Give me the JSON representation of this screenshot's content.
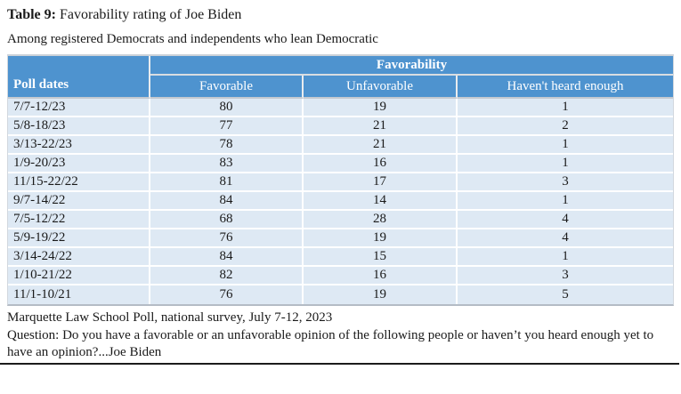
{
  "title": {
    "prefix": "Table 9:",
    "text": "Favorability rating of Joe Biden"
  },
  "subtitle": "Among registered Democrats and independents who lean Democratic",
  "table": {
    "group_header": "Favorability",
    "columns": [
      "Poll dates",
      "Favorable",
      "Unfavorable",
      "Haven't heard enough"
    ],
    "rows": [
      {
        "date": "7/7-12/23",
        "favorable": "80",
        "unfavorable": "19",
        "havent_heard": "1"
      },
      {
        "date": "5/8-18/23",
        "favorable": "77",
        "unfavorable": "21",
        "havent_heard": "2"
      },
      {
        "date": "3/13-22/23",
        "favorable": "78",
        "unfavorable": "21",
        "havent_heard": "1"
      },
      {
        "date": "1/9-20/23",
        "favorable": "83",
        "unfavorable": "16",
        "havent_heard": "1"
      },
      {
        "date": "11/15-22/22",
        "favorable": "81",
        "unfavorable": "17",
        "havent_heard": "3"
      },
      {
        "date": "9/7-14/22",
        "favorable": "84",
        "unfavorable": "14",
        "havent_heard": "1"
      },
      {
        "date": "7/5-12/22",
        "favorable": "68",
        "unfavorable": "28",
        "havent_heard": "4"
      },
      {
        "date": "5/9-19/22",
        "favorable": "76",
        "unfavorable": "19",
        "havent_heard": "4"
      },
      {
        "date": "3/14-24/22",
        "favorable": "84",
        "unfavorable": "15",
        "havent_heard": "1"
      },
      {
        "date": "1/10-21/22",
        "favorable": "82",
        "unfavorable": "16",
        "havent_heard": "3"
      },
      {
        "date": "11/1-10/21",
        "favorable": "76",
        "unfavorable": "19",
        "havent_heard": "5"
      }
    ]
  },
  "footer": {
    "source": "Marquette Law School Poll, national survey, July 7-12, 2023",
    "question": "Question: Do you have a favorable or an unfavorable opinion of the following people or haven’t you heard enough yet to have an opinion?...Joe Biden"
  },
  "colors": {
    "header_bg": "#4e93cf",
    "header_text": "#ffffff",
    "row_bg": "#dee9f4",
    "text_color": "#1a1a1a",
    "rule_color": "#1b1b1b",
    "page_bg": "#ffffff"
  }
}
